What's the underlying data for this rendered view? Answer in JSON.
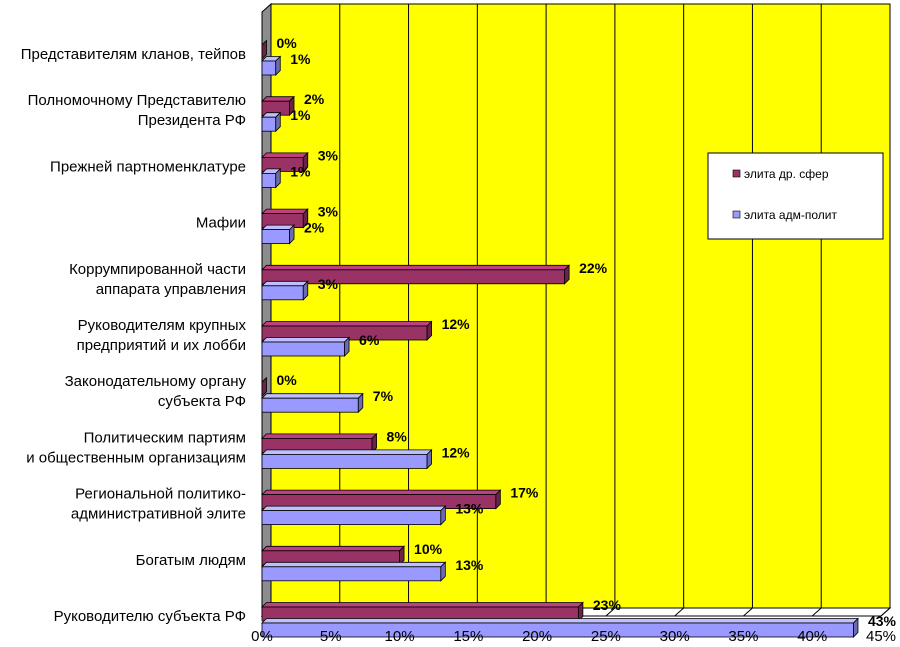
{
  "chart_data": {
    "type": "bar",
    "orientation": "horizontal",
    "title": "",
    "xlabel": "",
    "ylabel": "",
    "xlim": [
      0,
      45
    ],
    "x_ticks": [
      "0%",
      "5%",
      "10%",
      "15%",
      "20%",
      "25%",
      "30%",
      "35%",
      "40%",
      "45%"
    ],
    "grid": true,
    "legend_position": "right",
    "colors": {
      "plot_background": "#ffff00",
      "side_wall": "#8c8c8c",
      "elite_other": "#993366",
      "elite_adm": "#9999ff",
      "gridline": "#000000"
    },
    "categories": [
      [
        "Представителям кланов, тейпов"
      ],
      [
        "Полномочному Представителю",
        "Президента РФ"
      ],
      [
        "Прежней партноменклатуре"
      ],
      [
        "Мафии"
      ],
      [
        "Коррумпированной части",
        "аппарата управления"
      ],
      [
        "Руководителям крупных",
        "предприятий и их лобби"
      ],
      [
        "Законодательному органу",
        "субъекта РФ"
      ],
      [
        "Политическим партиям",
        "и общественным организациям"
      ],
      [
        "Региональной политико-",
        "административной элите"
      ],
      [
        "Богатым людям"
      ],
      [
        "Руководителю субъекта РФ"
      ]
    ],
    "series": [
      {
        "name": "элита др. сфер",
        "values": [
          0,
          2,
          3,
          3,
          22,
          12,
          0,
          8,
          17,
          10,
          23
        ],
        "labels": [
          "0%",
          "2%",
          "3%",
          "3%",
          "22%",
          "12%",
          "0%",
          "8%",
          "17%",
          "10%",
          "23%"
        ]
      },
      {
        "name": "элита адм-полит",
        "values": [
          1,
          1,
          1,
          2,
          3,
          6,
          7,
          12,
          13,
          13,
          43
        ],
        "labels": [
          "1%",
          "1%",
          "1%",
          "2%",
          "3%",
          "6%",
          "7%",
          "12%",
          "13%",
          "13%",
          "43%"
        ]
      }
    ]
  }
}
